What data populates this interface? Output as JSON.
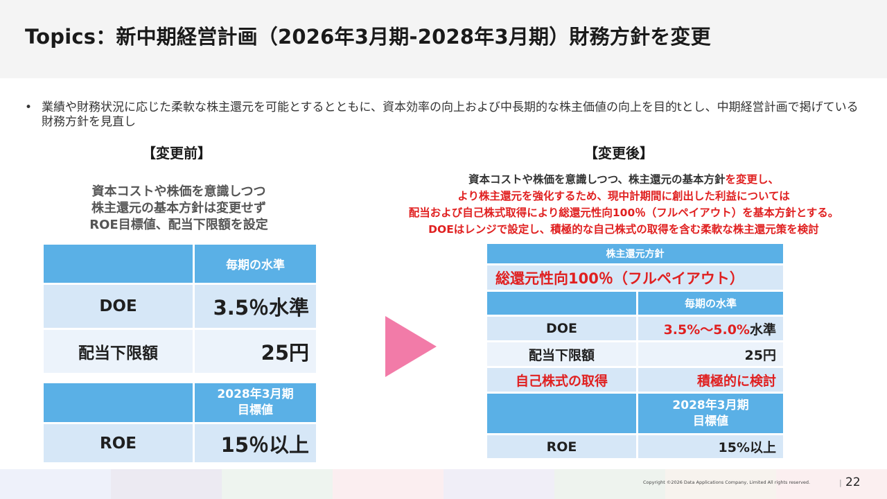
{
  "title": "Topics：新中期経営計画（2026年3月期-2028年3月期）財務方針を変更",
  "bullet": "業績や財務状況に応じた柔軟な株主還元を可能とするとともに、資本効率の向上および中長期的な株主価値の向上を目的tとし、中期経営計画で掲げている財務方針を見直し",
  "before": {
    "heading": "【変更前】",
    "desc": [
      "資本コストや株価を意識しつつ",
      "株主還元の基本方針は変更せず",
      "ROE目標値、配当下限額を設定"
    ],
    "table1": {
      "header": "毎期の水準",
      "rows": [
        {
          "label": "DOE",
          "value": "3.5％水準"
        },
        {
          "label": "配当下限額",
          "value": "25円"
        }
      ]
    },
    "table2": {
      "header_line1": "2028年3月期",
      "header_line2": "目標値",
      "rows": [
        {
          "label": "ROE",
          "value": "15％以上"
        }
      ]
    }
  },
  "after": {
    "heading": "【変更後】",
    "desc": {
      "line1_plain": "資本コストや株価を意識しつつ、株主還元の基本方針",
      "line1_red": "を変更し、",
      "line2": "より株主還元を強化するため、現中計期間に創出した利益については",
      "line3": "配当および自己株式取得により総還元性向100％（フルペイアウト）を基本方針とする。",
      "line4": "DOEはレンジで設定し、積極的な自己株式の取得を含む柔軟な株主還元策を検討"
    },
    "policy_header": "株主還元方針",
    "policy_value": "総還元性向100％（フルペイアウト）",
    "level_header": "毎期の水準",
    "doe_label": "DOE",
    "doe_value_red": "3.5%～5.0%",
    "doe_value_suffix": "水準",
    "floor_label": "配当下限額",
    "floor_value": "25円",
    "buyback_label": "自己株式の取得",
    "buyback_value": "積極的に検討",
    "target_header_line1": "2028年3月期",
    "target_header_line2": "目標値",
    "roe_label": "ROE",
    "roe_value": "15%以上"
  },
  "footer": {
    "copyright": "Copyright ©2026 Data Applications Company, Limited All rights reserved.",
    "separator": "|",
    "page_number": "22"
  },
  "colors": {
    "header_cell": "#5ab0e6",
    "row_dark": "#d6e7f7",
    "row_light": "#ecf3fb",
    "accent_red": "#e02020",
    "arrow": "#f27ba8"
  }
}
